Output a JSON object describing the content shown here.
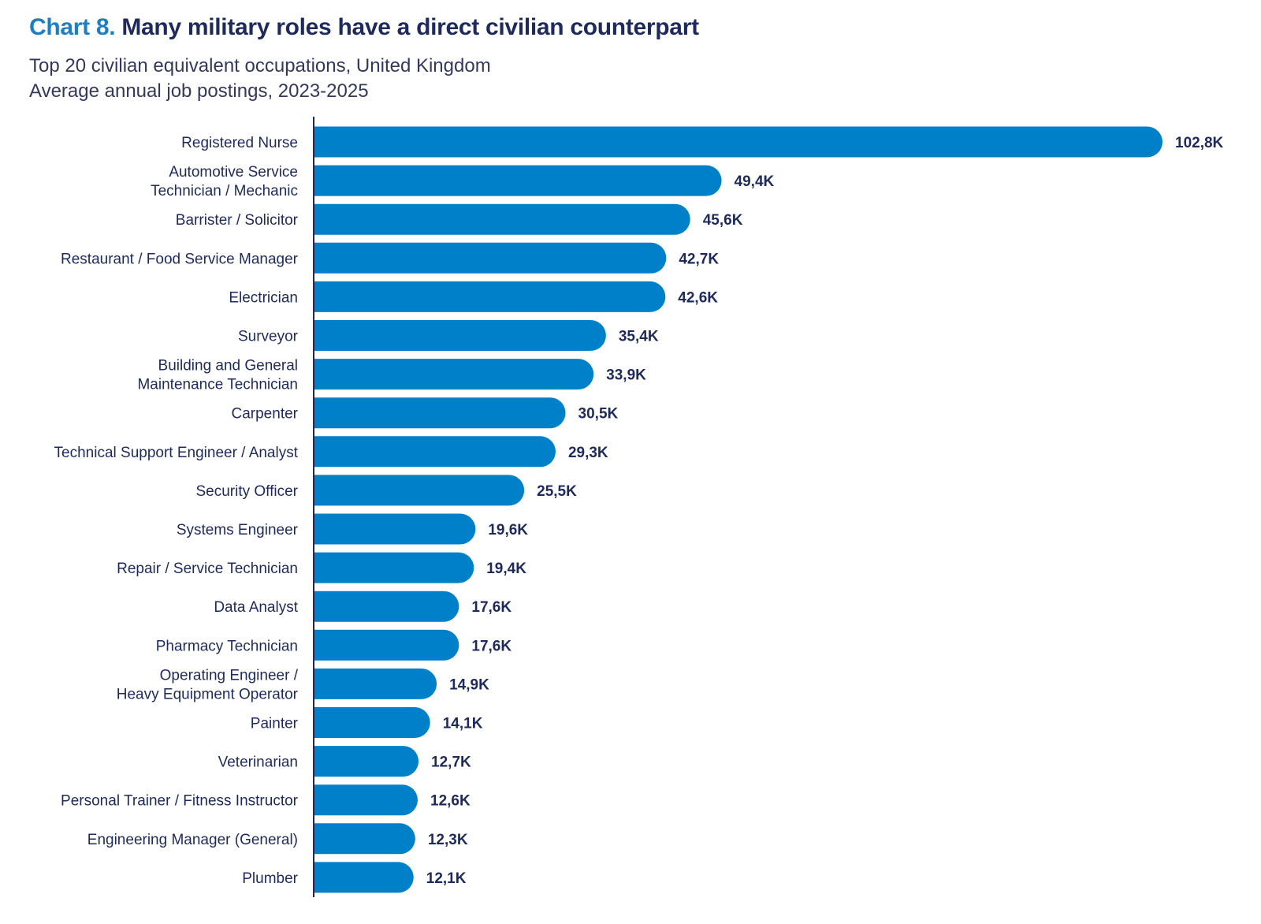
{
  "header": {
    "chart_number": "Chart 8.",
    "title": "Many military roles have a direct civilian counterpart",
    "subtitle_line1": "Top 20 civilian equivalent occupations, United Kingdom",
    "subtitle_line2": "Average annual job postings, 2023-2025"
  },
  "colors": {
    "bar": "#0080c9",
    "axis": "#1e2a5c",
    "text": "#1e2a5c",
    "chart_number": "#1c7fc3"
  },
  "chart_data": {
    "type": "bar",
    "orientation": "horizontal",
    "title": "Many military roles have a direct civilian counterpart",
    "subtitle": "Top 20 civilian equivalent occupations, United Kingdom; Average annual job postings, 2023-2025",
    "xlabel": "",
    "ylabel": "",
    "grid": false,
    "legend": "none",
    "xlim": [
      0,
      102.8
    ],
    "unit": "thousand job postings",
    "categories": [
      [
        "Registered Nurse"
      ],
      [
        "Automotive Service",
        "Technician / Mechanic"
      ],
      [
        "Barrister / Solicitor"
      ],
      [
        "Restaurant / Food Service Manager"
      ],
      [
        "Electrician"
      ],
      [
        "Surveyor"
      ],
      [
        "Building and General",
        "Maintenance Technician"
      ],
      [
        "Carpenter"
      ],
      [
        "Technical Support Engineer / Analyst"
      ],
      [
        "Security Officer"
      ],
      [
        "Systems Engineer"
      ],
      [
        "Repair / Service Technician"
      ],
      [
        "Data Analyst"
      ],
      [
        "Pharmacy Technician"
      ],
      [
        "Operating Engineer /",
        "Heavy Equipment Operator"
      ],
      [
        "Painter"
      ],
      [
        "Veterinarian"
      ],
      [
        "Personal Trainer / Fitness Instructor"
      ],
      [
        "Engineering Manager (General)"
      ],
      [
        "Plumber"
      ]
    ],
    "values": [
      102.8,
      49.4,
      45.6,
      42.7,
      42.6,
      35.4,
      33.9,
      30.5,
      29.3,
      25.5,
      19.6,
      19.4,
      17.6,
      17.6,
      14.9,
      14.1,
      12.7,
      12.6,
      12.3,
      12.1
    ],
    "value_labels": [
      "102,8K",
      "49,4K",
      "45,6K",
      "42,7K",
      "42,6K",
      "35,4K",
      "33,9K",
      "30,5K",
      "29,3K",
      "25,5K",
      "19,6K",
      "19,4K",
      "17,6K",
      "17,6K",
      "14,9K",
      "14,1K",
      "12,7K",
      "12,6K",
      "12,3K",
      "12,1K"
    ]
  }
}
